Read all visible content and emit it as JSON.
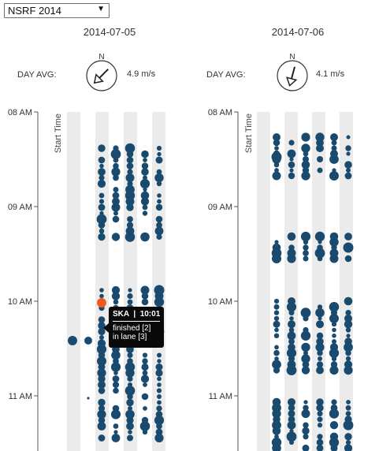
{
  "regatta_select": {
    "value": "NSRF 2014"
  },
  "days": [
    {
      "date": "2014-07-05",
      "avg_label": "DAY AVG:",
      "wind_speed": "4.9 m/s",
      "wind_direction_deg": 45,
      "compass_north": "N"
    },
    {
      "date": "2014-07-06",
      "avg_label": "DAY AVG:",
      "wind_speed": "4.1 m/s",
      "wind_direction_deg": 15,
      "compass_north": "N"
    }
  ],
  "axis": {
    "label": "Start Time",
    "ticks": [
      "08 AM",
      "09 AM",
      "10 AM",
      "11 AM"
    ]
  },
  "colors": {
    "dot": "#1a4b6e",
    "highlight": "#f05a1e",
    "lane_stripe": "#ebebeb",
    "tooltip_bg": "#0a0a0a"
  },
  "tooltip": {
    "crew": "SKA",
    "sep": "|",
    "time": "10:01",
    "finished": "finished [2]",
    "lane": "in lane [3]"
  }
}
